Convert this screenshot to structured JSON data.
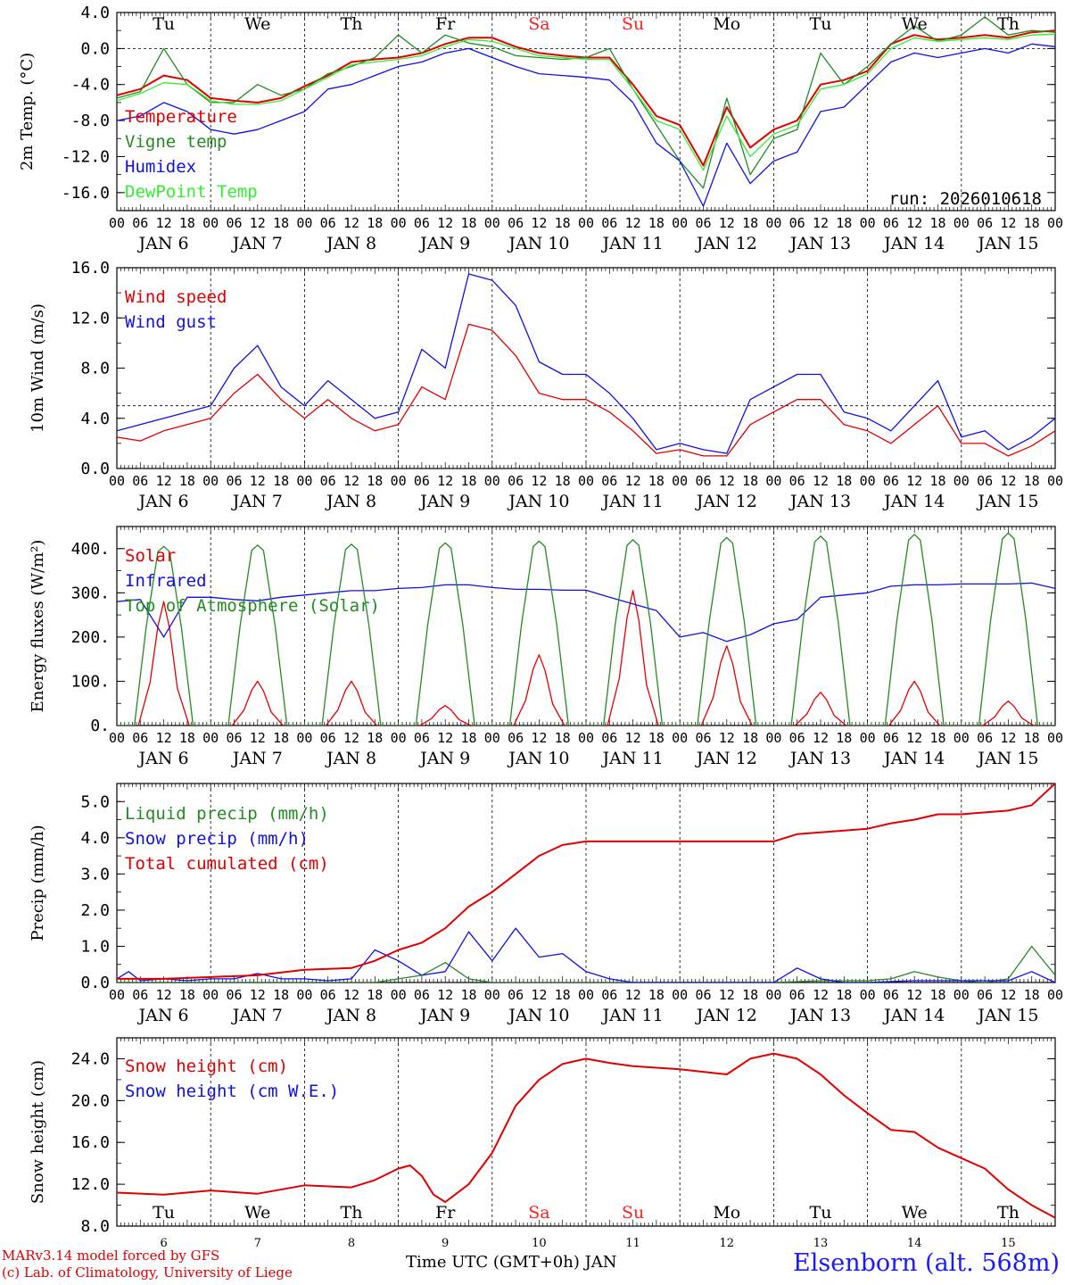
{
  "style": {
    "red": "#e00000",
    "green": "#228b22",
    "blue": "#1010e0",
    "lightgreen": "#33ee33",
    "weekend": "#ff2020"
  },
  "days": {
    "weekday_labels": [
      "Tu",
      "We",
      "Th",
      "Fr",
      "Sa",
      "Su",
      "Mo",
      "Tu",
      "We",
      "Th"
    ],
    "weekend_flags": [
      false,
      false,
      false,
      false,
      true,
      true,
      false,
      false,
      false,
      false
    ],
    "date_labels": [
      "JAN  6",
      "JAN  7",
      "JAN  8",
      "JAN  9",
      "JAN 10",
      "JAN 11",
      "JAN 12",
      "JAN 13",
      "JAN 14",
      "JAN 15"
    ],
    "hour_labels": [
      "00",
      "06",
      "12",
      "18"
    ],
    "final_hour_label": "00",
    "day_numbers": [
      "6",
      "7",
      "8",
      "9",
      "10",
      "11",
      "12",
      "13",
      "14",
      "15"
    ]
  },
  "footer": {
    "model_line": "MARv3.14 model forced by GFS",
    "lab_line": "(c) Lab. of Climatology, University of Liege",
    "xlabel": "Time UTC (GMT+0h) JAN",
    "station": "Elsenborn (alt. 568m)"
  },
  "chart_data": [
    {
      "type": "line",
      "id": "temp",
      "ylabel": "2m Temp. (°C)",
      "ylim": [
        -18,
        4
      ],
      "yticks": [
        -16,
        -12,
        -8,
        -4,
        0,
        4
      ],
      "tick_labels": [
        "-16.0",
        "-12.0",
        "-8.0",
        "-4.0",
        "0.0",
        "4.0"
      ],
      "reference_line": 0,
      "run_label": "run: 2026010618",
      "x_unit": "hours since JAN 6 00 UTC",
      "series": [
        {
          "name": "Temperature",
          "color": "red",
          "x": [
            0,
            6,
            12,
            18,
            24,
            30,
            36,
            42,
            48,
            54,
            60,
            66,
            72,
            78,
            84,
            90,
            96,
            102,
            108,
            114,
            120,
            126,
            132,
            138,
            144,
            150,
            156,
            162,
            168,
            174,
            180,
            186,
            192,
            198,
            204,
            210,
            216,
            222,
            228,
            234,
            240
          ],
          "values": [
            -5.2,
            -4.5,
            -3.0,
            -3.5,
            -5.5,
            -5.8,
            -6.0,
            -5.5,
            -4.2,
            -3.0,
            -1.5,
            -1.2,
            -1.0,
            -0.5,
            0.5,
            1.2,
            1.2,
            0.2,
            -0.5,
            -0.8,
            -1.0,
            -1.0,
            -4.0,
            -7.5,
            -8.5,
            -13.0,
            -6.5,
            -11.0,
            -9.0,
            -8.0,
            -4.0,
            -3.5,
            -2.5,
            0.5,
            1.5,
            1.0,
            1.2,
            1.5,
            1.2,
            1.8,
            2.0
          ]
        },
        {
          "name": "Vigne temp",
          "color": "green",
          "x": [
            0,
            6,
            12,
            18,
            24,
            30,
            36,
            42,
            48,
            54,
            60,
            66,
            72,
            78,
            84,
            90,
            96,
            102,
            108,
            114,
            120,
            126,
            132,
            138,
            144,
            150,
            156,
            162,
            168,
            174,
            180,
            186,
            192,
            198,
            204,
            210,
            216,
            222,
            228,
            234,
            240
          ],
          "values": [
            -5.5,
            -4.8,
            0.0,
            -4.0,
            -6.0,
            -6.0,
            -4.0,
            -5.2,
            -4.5,
            -2.8,
            -2.0,
            -1.0,
            1.5,
            -0.5,
            1.5,
            0.6,
            0.2,
            -0.8,
            -1.0,
            -1.2,
            -1.0,
            0.0,
            -4.5,
            -8.5,
            -12.5,
            -15.5,
            -5.5,
            -14.0,
            -10.0,
            -9.0,
            -0.5,
            -4.0,
            -2.0,
            0.5,
            2.5,
            0.8,
            1.5,
            3.5,
            1.5,
            2.0,
            1.8
          ]
        },
        {
          "name": "Humidex",
          "color": "blue",
          "x": [
            0,
            6,
            12,
            18,
            24,
            30,
            36,
            42,
            48,
            54,
            60,
            66,
            72,
            78,
            84,
            90,
            96,
            102,
            108,
            114,
            120,
            126,
            132,
            138,
            144,
            150,
            156,
            162,
            168,
            174,
            180,
            186,
            192,
            198,
            204,
            210,
            216,
            222,
            228,
            234,
            240
          ],
          "values": [
            -8.0,
            -7.5,
            -6.0,
            -7.0,
            -9.0,
            -9.5,
            -9.0,
            -8.0,
            -7.0,
            -4.5,
            -4.0,
            -3.0,
            -2.0,
            -1.5,
            -0.5,
            0.0,
            -1.0,
            -2.0,
            -2.8,
            -3.0,
            -3.2,
            -3.5,
            -6.0,
            -10.5,
            -12.5,
            -17.5,
            -10.5,
            -15.0,
            -12.5,
            -11.5,
            -7.0,
            -6.5,
            -4.0,
            -1.5,
            -0.5,
            -1.0,
            -0.5,
            0.0,
            -0.5,
            0.5,
            0.2
          ]
        },
        {
          "name": "DewPoint Temp",
          "color": "lightgreen",
          "x": [
            0,
            6,
            12,
            18,
            24,
            30,
            36,
            42,
            48,
            54,
            60,
            66,
            72,
            78,
            84,
            90,
            96,
            102,
            108,
            114,
            120,
            126,
            132,
            138,
            144,
            150,
            156,
            162,
            168,
            174,
            180,
            186,
            192,
            198,
            204,
            210,
            216,
            222,
            228,
            234,
            240
          ],
          "values": [
            -5.8,
            -5.0,
            -3.8,
            -4.0,
            -5.8,
            -6.2,
            -6.2,
            -5.8,
            -4.5,
            -3.2,
            -1.8,
            -1.5,
            -1.2,
            -0.8,
            0.2,
            1.0,
            0.8,
            0.0,
            -0.8,
            -1.0,
            -1.2,
            -1.2,
            -4.5,
            -8.0,
            -9.0,
            -13.5,
            -7.5,
            -12.0,
            -9.5,
            -8.5,
            -4.5,
            -4.0,
            -2.8,
            0.0,
            1.2,
            0.8,
            1.0,
            1.2,
            1.0,
            1.5,
            1.6
          ]
        }
      ]
    },
    {
      "type": "line",
      "id": "wind",
      "ylabel": "10m Wind (m/s)",
      "ylim": [
        0,
        16
      ],
      "yticks": [
        0,
        4,
        8,
        12,
        16
      ],
      "tick_labels": [
        "0.0",
        "4.0",
        "8.0",
        "12.0",
        "16.0"
      ],
      "reference_line": 5,
      "series": [
        {
          "name": "Wind speed",
          "color": "red",
          "x": [
            0,
            6,
            12,
            18,
            24,
            30,
            36,
            42,
            48,
            54,
            60,
            66,
            72,
            78,
            84,
            90,
            96,
            102,
            108,
            114,
            120,
            126,
            132,
            138,
            144,
            150,
            156,
            162,
            168,
            174,
            180,
            186,
            192,
            198,
            204,
            210,
            216,
            222,
            228,
            234,
            240
          ],
          "values": [
            2.5,
            2.2,
            3.0,
            3.5,
            4.0,
            6.0,
            7.5,
            5.5,
            4.0,
            5.5,
            4.0,
            3.0,
            3.5,
            6.5,
            5.5,
            11.5,
            11.0,
            9.0,
            6.0,
            5.5,
            5.5,
            4.5,
            3.0,
            1.2,
            1.5,
            1.0,
            1.0,
            3.5,
            4.5,
            5.5,
            5.5,
            3.5,
            3.0,
            2.0,
            3.5,
            5.0,
            2.0,
            2.0,
            1.0,
            1.8,
            3.0
          ]
        },
        {
          "name": "Wind gust",
          "color": "blue",
          "x": [
            0,
            6,
            12,
            18,
            24,
            30,
            36,
            42,
            48,
            54,
            60,
            66,
            72,
            78,
            84,
            90,
            96,
            102,
            108,
            114,
            120,
            126,
            132,
            138,
            144,
            150,
            156,
            162,
            168,
            174,
            180,
            186,
            192,
            198,
            204,
            210,
            216,
            222,
            228,
            234,
            240
          ],
          "values": [
            3.0,
            3.5,
            4.0,
            4.5,
            5.0,
            8.0,
            9.8,
            6.5,
            5.0,
            7.0,
            5.5,
            4.0,
            4.5,
            9.5,
            8.0,
            15.5,
            15.0,
            13.0,
            8.5,
            7.5,
            7.5,
            6.0,
            4.0,
            1.5,
            2.0,
            1.5,
            1.2,
            5.5,
            6.5,
            7.5,
            7.5,
            4.5,
            4.0,
            3.0,
            5.0,
            7.0,
            2.5,
            3.0,
            1.5,
            2.5,
            4.0
          ]
        }
      ]
    },
    {
      "type": "line",
      "id": "energy",
      "ylabel": "Energy fluxes (W/m²)",
      "ylim": [
        0,
        450
      ],
      "yticks": [
        0,
        100,
        200,
        300,
        400
      ],
      "tick_labels": [
        "0.",
        "100.",
        "200.",
        "300.",
        "400."
      ],
      "series": [
        {
          "name": "Solar",
          "color": "red",
          "peaks": [
            280,
            100,
            100,
            45,
            160,
            305,
            180,
            75,
            100,
            55
          ]
        },
        {
          "name": "Infrared",
          "color": "blue",
          "x": [
            0,
            6,
            12,
            18,
            24,
            30,
            36,
            42,
            48,
            54,
            60,
            66,
            72,
            78,
            84,
            90,
            96,
            102,
            108,
            114,
            120,
            126,
            132,
            138,
            144,
            150,
            156,
            162,
            168,
            174,
            180,
            186,
            192,
            198,
            204,
            210,
            216,
            222,
            228,
            234,
            240
          ],
          "values": [
            280,
            285,
            200,
            290,
            290,
            285,
            282,
            290,
            295,
            300,
            305,
            305,
            310,
            312,
            318,
            318,
            312,
            308,
            308,
            306,
            306,
            290,
            275,
            260,
            200,
            210,
            190,
            205,
            230,
            240,
            290,
            295,
            300,
            315,
            318,
            318,
            320,
            320,
            320,
            322,
            310
          ]
        },
        {
          "name": "Top of Atmosphere (Solar)",
          "color": "green",
          "peaks": [
            405,
            408,
            410,
            413,
            417,
            420,
            425,
            428,
            432,
            435
          ]
        }
      ]
    },
    {
      "type": "line",
      "id": "precip",
      "ylabel": "Precip (mm/h)",
      "ylim": [
        0,
        5.5
      ],
      "yticks": [
        0,
        1,
        2,
        3,
        4,
        5
      ],
      "tick_labels": [
        "0.0",
        "1.0",
        "2.0",
        "3.0",
        "4.0",
        "5.0"
      ],
      "series": [
        {
          "name": "Liquid precip (mm/h)",
          "color": "green",
          "x": [
            0,
            12,
            24,
            36,
            48,
            60,
            66,
            72,
            78,
            84,
            90,
            96,
            102,
            108,
            120,
            144,
            168,
            180,
            192,
            198,
            204,
            210,
            216,
            222,
            228,
            234,
            240
          ],
          "values": [
            0,
            0,
            0,
            0,
            0,
            0,
            0,
            0.1,
            0.2,
            0.55,
            0.1,
            0,
            0,
            0,
            0,
            0,
            0,
            0.05,
            0.05,
            0.1,
            0.3,
            0.15,
            0.05,
            0,
            0.1,
            1.0,
            0.2
          ]
        },
        {
          "name": "Snow precip (mm/h)",
          "color": "blue",
          "x": [
            0,
            3,
            6,
            12,
            18,
            24,
            30,
            36,
            42,
            48,
            54,
            60,
            66,
            72,
            78,
            84,
            90,
            96,
            102,
            108,
            114,
            120,
            126,
            132,
            144,
            156,
            168,
            174,
            180,
            186,
            192,
            204,
            216,
            228,
            234,
            240
          ],
          "values": [
            0.1,
            0.3,
            0.05,
            0.1,
            0.05,
            0.1,
            0.1,
            0.25,
            0.1,
            0.1,
            0.05,
            0.1,
            0.9,
            0.6,
            0.2,
            0.3,
            1.4,
            0.6,
            1.5,
            0.7,
            0.8,
            0.3,
            0.1,
            0,
            0,
            0,
            0,
            0.4,
            0.1,
            0,
            0,
            0.05,
            0.05,
            0.05,
            0.3,
            0
          ]
        },
        {
          "name": "Total cumulated (cm)",
          "color": "red",
          "x": [
            0,
            12,
            24,
            36,
            48,
            60,
            66,
            72,
            78,
            84,
            90,
            96,
            102,
            108,
            114,
            120,
            126,
            132,
            144,
            156,
            168,
            174,
            180,
            186,
            192,
            198,
            204,
            210,
            216,
            222,
            228,
            234,
            240
          ],
          "values": [
            0.1,
            0.1,
            0.15,
            0.2,
            0.35,
            0.4,
            0.6,
            0.9,
            1.1,
            1.5,
            2.1,
            2.5,
            3.0,
            3.5,
            3.8,
            3.9,
            3.9,
            3.9,
            3.9,
            3.9,
            3.9,
            4.1,
            4.15,
            4.2,
            4.25,
            4.4,
            4.5,
            4.65,
            4.65,
            4.7,
            4.75,
            4.9,
            5.5
          ]
        }
      ]
    },
    {
      "type": "line",
      "id": "snow",
      "ylabel": "Snow height (cm)",
      "ylim": [
        8,
        26
      ],
      "yticks": [
        8,
        12,
        16,
        20,
        24
      ],
      "tick_labels": [
        "8.0",
        "12.0",
        "16.0",
        "20.0",
        "24.0"
      ],
      "series": [
        {
          "name": "Snow height (cm)",
          "color": "red",
          "x": [
            0,
            12,
            24,
            36,
            48,
            60,
            66,
            72,
            75,
            78,
            81,
            84,
            90,
            96,
            102,
            108,
            114,
            120,
            126,
            132,
            144,
            156,
            162,
            168,
            174,
            180,
            186,
            192,
            198,
            204,
            210,
            216,
            222,
            228,
            234,
            240
          ],
          "values": [
            11.2,
            11.0,
            11.4,
            11.1,
            11.9,
            11.7,
            12.4,
            13.5,
            13.8,
            12.8,
            11.0,
            10.3,
            12.0,
            15.0,
            19.5,
            22.0,
            23.5,
            24.0,
            23.6,
            23.3,
            23.0,
            22.5,
            24.0,
            24.5,
            24.0,
            22.5,
            20.5,
            18.8,
            17.2,
            17.0,
            15.5,
            14.5,
            13.5,
            11.5,
            10.0,
            8.8
          ]
        },
        {
          "name": "Snow height (cm W.E.)",
          "color": "blue",
          "x": [],
          "values": []
        }
      ]
    }
  ]
}
